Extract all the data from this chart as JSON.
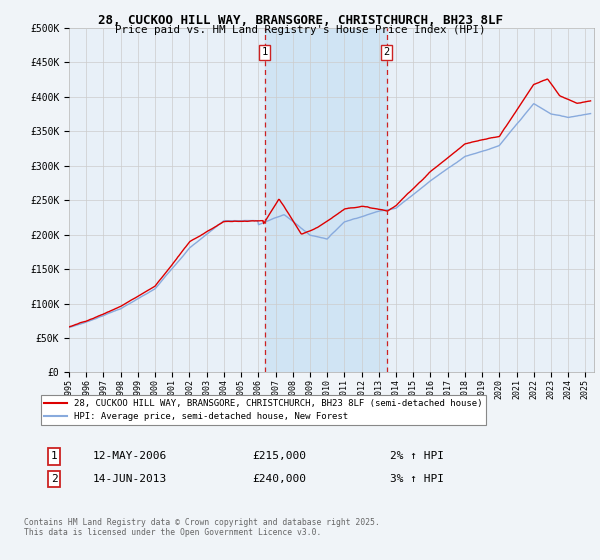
{
  "title_line1": "28, CUCKOO HILL WAY, BRANSGORE, CHRISTCHURCH, BH23 8LF",
  "title_line2": "Price paid vs. HM Land Registry's House Price Index (HPI)",
  "background_color": "#f0f4f8",
  "plot_bg_color": "#e8f0f8",
  "legend_label_red": "28, CUCKOO HILL WAY, BRANSGORE, CHRISTCHURCH, BH23 8LF (semi-detached house)",
  "legend_label_blue": "HPI: Average price, semi-detached house, New Forest",
  "annotation1": {
    "label": "1",
    "date": "12-MAY-2006",
    "price": "£215,000",
    "hpi": "2% ↑ HPI",
    "x_year": 2006.37
  },
  "annotation2": {
    "label": "2",
    "date": "14-JUN-2013",
    "price": "£240,000",
    "hpi": "3% ↑ HPI",
    "x_year": 2013.45
  },
  "footer": "Contains HM Land Registry data © Crown copyright and database right 2025.\nThis data is licensed under the Open Government Licence v3.0.",
  "yticks": [
    0,
    50000,
    100000,
    150000,
    200000,
    250000,
    300000,
    350000,
    400000,
    450000,
    500000
  ],
  "ytick_labels": [
    "£0",
    "£50K",
    "£100K",
    "£150K",
    "£200K",
    "£250K",
    "£300K",
    "£350K",
    "£400K",
    "£450K",
    "£500K"
  ],
  "xmin": 1995,
  "xmax": 2025.5,
  "ymin": 0,
  "ymax": 500000,
  "red_color": "#dd0000",
  "blue_color": "#88aadd",
  "shade_color": "#d0e4f4",
  "vline_color": "#cc2222",
  "grid_color": "#cccccc"
}
